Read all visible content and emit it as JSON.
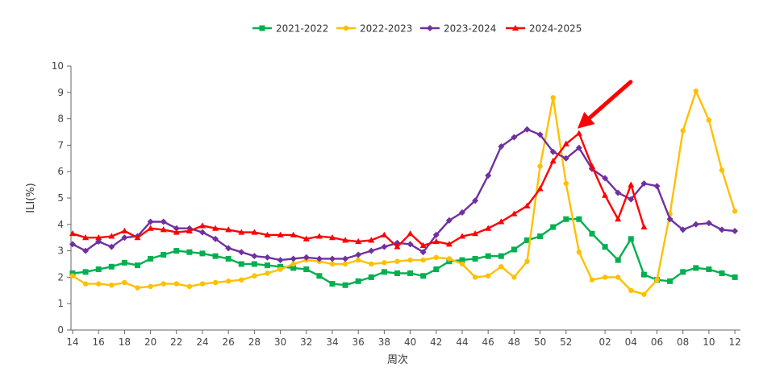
{
  "chart_data": {
    "type": "line",
    "title": "",
    "xlabel": "周次",
    "ylabel": "ILI(%)",
    "ylim": [
      0,
      10
    ],
    "yticks": [
      0,
      1,
      2,
      3,
      4,
      5,
      6,
      7,
      8,
      9,
      10
    ],
    "categories": [
      "14",
      "15",
      "16",
      "17",
      "18",
      "19",
      "20",
      "21",
      "22",
      "23",
      "24",
      "25",
      "26",
      "27",
      "28",
      "29",
      "30",
      "31",
      "32",
      "33",
      "34",
      "35",
      "36",
      "37",
      "38",
      "39",
      "40",
      "41",
      "42",
      "43",
      "44",
      "45",
      "46",
      "47",
      "48",
      "49",
      "50",
      "51",
      "52",
      "53",
      "01",
      "02",
      "03",
      "04",
      "05",
      "06",
      "07",
      "08",
      "09",
      "10",
      "11",
      "12",
      "13"
    ],
    "xtick_labels": [
      "14",
      "16",
      "18",
      "20",
      "22",
      "24",
      "26",
      "28",
      "30",
      "32",
      "34",
      "36",
      "38",
      "40",
      "42",
      "44",
      "46",
      "48",
      "50",
      "52",
      "02",
      "04",
      "06",
      "08",
      "10",
      "12"
    ],
    "legend_position": "top-center",
    "series": [
      {
        "name": "2021-2022",
        "color": "#00b050",
        "marker": "square",
        "values": [
          2.15,
          2.2,
          2.3,
          2.4,
          2.55,
          2.45,
          2.7,
          2.85,
          3.0,
          2.95,
          2.9,
          2.8,
          2.7,
          2.5,
          2.5,
          2.45,
          2.4,
          2.35,
          2.3,
          2.05,
          1.75,
          1.7,
          1.85,
          2.0,
          2.2,
          2.15,
          2.15,
          2.05,
          2.3,
          2.6,
          2.65,
          2.7,
          2.8,
          2.8,
          3.05,
          3.4,
          3.55,
          3.9,
          4.2,
          4.2,
          3.65,
          3.15,
          2.65,
          3.45,
          2.1,
          1.9,
          1.85,
          2.2,
          2.35,
          2.3,
          2.15,
          2.0,
          null
        ]
      },
      {
        "name": "2022-2023",
        "color": "#ffc000",
        "marker": "circle",
        "values": [
          2.05,
          1.75,
          1.75,
          1.7,
          1.8,
          1.6,
          1.65,
          1.75,
          1.75,
          1.65,
          1.75,
          1.8,
          1.85,
          1.9,
          2.05,
          2.15,
          2.3,
          2.5,
          2.65,
          2.6,
          2.5,
          2.5,
          2.65,
          2.5,
          2.55,
          2.6,
          2.65,
          2.65,
          2.75,
          2.7,
          2.5,
          2.0,
          2.05,
          2.4,
          2.0,
          2.6,
          6.2,
          8.8,
          5.55,
          2.95,
          1.9,
          2.0,
          2.0,
          1.5,
          1.35,
          1.9,
          4.4,
          7.55,
          9.05,
          7.95,
          6.05,
          4.5,
          null
        ]
      },
      {
        "name": "2023-2024",
        "color": "#7030a0",
        "marker": "diamond",
        "values": [
          3.25,
          3.0,
          3.35,
          3.15,
          3.5,
          3.55,
          4.1,
          4.1,
          3.85,
          3.85,
          3.7,
          3.45,
          3.1,
          2.95,
          2.8,
          2.75,
          2.65,
          2.7,
          2.75,
          2.7,
          2.7,
          2.7,
          2.85,
          3.0,
          3.15,
          3.3,
          3.25,
          2.95,
          3.6,
          4.15,
          4.45,
          4.9,
          5.85,
          6.95,
          7.3,
          7.6,
          7.4,
          6.75,
          6.5,
          6.9,
          6.1,
          5.75,
          5.2,
          4.95,
          5.55,
          5.45,
          4.2,
          3.8,
          4.0,
          4.05,
          3.8,
          3.75,
          null
        ]
      },
      {
        "name": "2024-2025",
        "color": "#ff0000",
        "marker": "triangle",
        "values": [
          3.65,
          3.5,
          3.5,
          3.55,
          3.75,
          3.5,
          3.85,
          3.8,
          3.7,
          3.75,
          3.95,
          3.85,
          3.8,
          3.7,
          3.7,
          3.6,
          3.6,
          3.6,
          3.45,
          3.55,
          3.5,
          3.4,
          3.35,
          3.4,
          3.6,
          3.15,
          3.65,
          3.2,
          3.35,
          3.25,
          3.55,
          3.65,
          3.85,
          4.1,
          4.4,
          4.7,
          5.35,
          6.4,
          7.05,
          7.45,
          6.2,
          5.1,
          4.2,
          5.5,
          3.9,
          null,
          null,
          null,
          null,
          null,
          null,
          null,
          null
        ]
      }
    ],
    "annotations": [
      {
        "type": "arrow",
        "color": "#ff0000",
        "points_to_category": "53",
        "points_to_value": 7.6
      }
    ]
  }
}
